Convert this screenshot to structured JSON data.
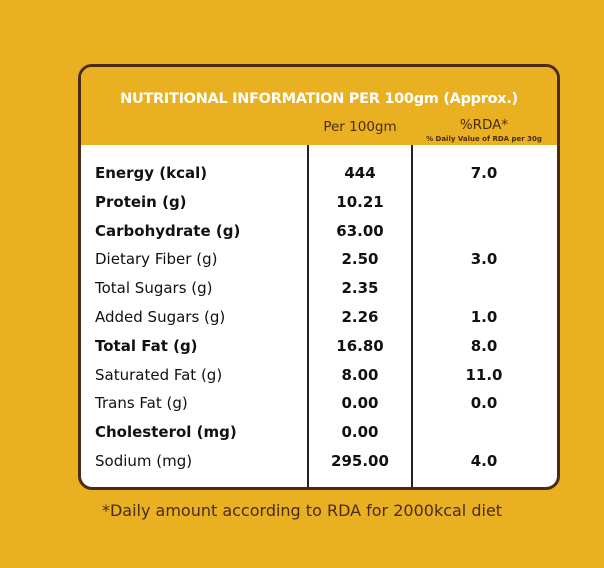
{
  "title": "NUTRITIONAL INFORMATION PER 100gm (Approx.)",
  "columns": {
    "per100": "Per 100gm",
    "rda": "%RDA*",
    "rda_sub": "% Daily Value of RDA per 30g"
  },
  "rows": [
    {
      "name": "Energy (kcal)",
      "bold": true,
      "per100": "444",
      "rda": "7.0"
    },
    {
      "name": "Protein (g)",
      "bold": true,
      "per100": "10.21",
      "rda": ""
    },
    {
      "name": "Carbohydrate (g)",
      "bold": true,
      "per100": "63.00",
      "rda": ""
    },
    {
      "name": "Dietary Fiber (g)",
      "bold": false,
      "per100": "2.50",
      "rda": "3.0"
    },
    {
      "name": "Total Sugars (g)",
      "bold": false,
      "per100": "2.35",
      "rda": ""
    },
    {
      "name": "Added Sugars (g)",
      "bold": false,
      "per100": "2.26",
      "rda": "1.0"
    },
    {
      "name": "Total Fat (g)",
      "bold": true,
      "per100": "16.80",
      "rda": "8.0"
    },
    {
      "name": "Saturated Fat (g)",
      "bold": false,
      "per100": "8.00",
      "rda": "11.0"
    },
    {
      "name": "Trans Fat (g)",
      "bold": false,
      "per100": "0.00",
      "rda": "0.0"
    },
    {
      "name": "Cholesterol (mg)",
      "bold": true,
      "per100": "0.00",
      "rda": ""
    },
    {
      "name": "Sodium (mg)",
      "bold": false,
      "per100": "295.00",
      "rda": "4.0"
    }
  ],
  "footnote": "*Daily amount according to RDA for 2000kcal diet"
}
